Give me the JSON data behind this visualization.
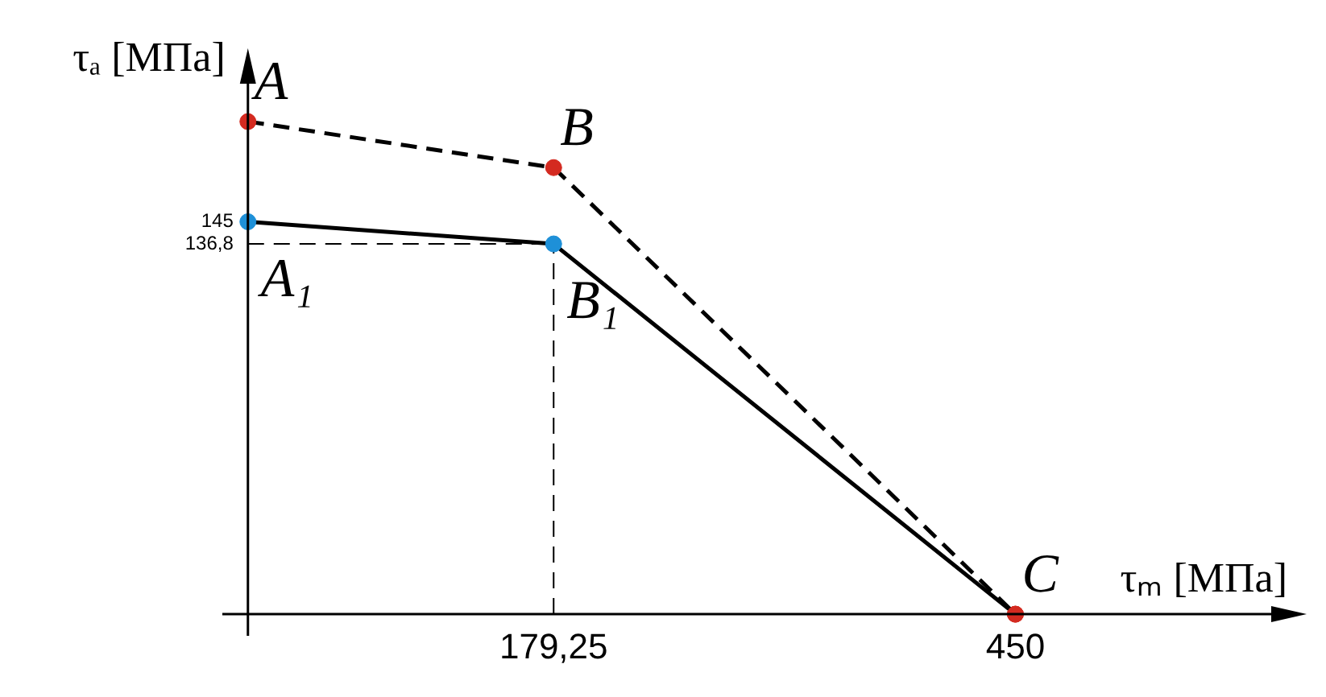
{
  "chart_data": {
    "type": "line",
    "xlabel": "τₘ [МПа]",
    "ylabel": "τₐ [МПа]",
    "series": [
      {
        "color": "#000000",
        "colors": [
          "#d42a20",
          "#d42a20",
          "#d42a20"
        ],
        "line_style": "dashed",
        "x": [
          0,
          179.25,
          450
        ],
        "values": [
          182,
          165,
          0
        ]
      },
      {
        "color": "#000000",
        "colors": [
          "#1e90d8",
          "#1e90d8",
          "#d42a20"
        ],
        "line_style": "solid",
        "x": [
          0,
          179.25,
          450
        ],
        "values": [
          145,
          136.8,
          0
        ]
      }
    ],
    "marker": "circle",
    "legend": false,
    "grid": false,
    "xlim": [
      -15,
      600
    ],
    "xticks": [
      {
        "value": 179.25,
        "label": "179,25"
      },
      450
    ],
    "ylim": [
      -8,
      196
    ],
    "yticks": [
      145,
      {
        "value": 136.8,
        "label": "136,8"
      }
    ],
    "ref_lines": [
      {
        "axis": "y",
        "value": 136.8,
        "line_style": "dashed"
      },
      {
        "axis": "x",
        "value": 179.25,
        "line_style": "dashed"
      }
    ],
    "annotations": [
      {
        "text": "A",
        "x": 0,
        "y": 182
      },
      {
        "text": "B",
        "x": 179.25,
        "y": 165
      },
      {
        "text": "C",
        "x": 450,
        "y": 0
      },
      {
        "text": "A₁",
        "x": 0,
        "y": 145
      },
      {
        "text": "B₁",
        "x": 179.25,
        "y": 136.8
      }
    ]
  }
}
